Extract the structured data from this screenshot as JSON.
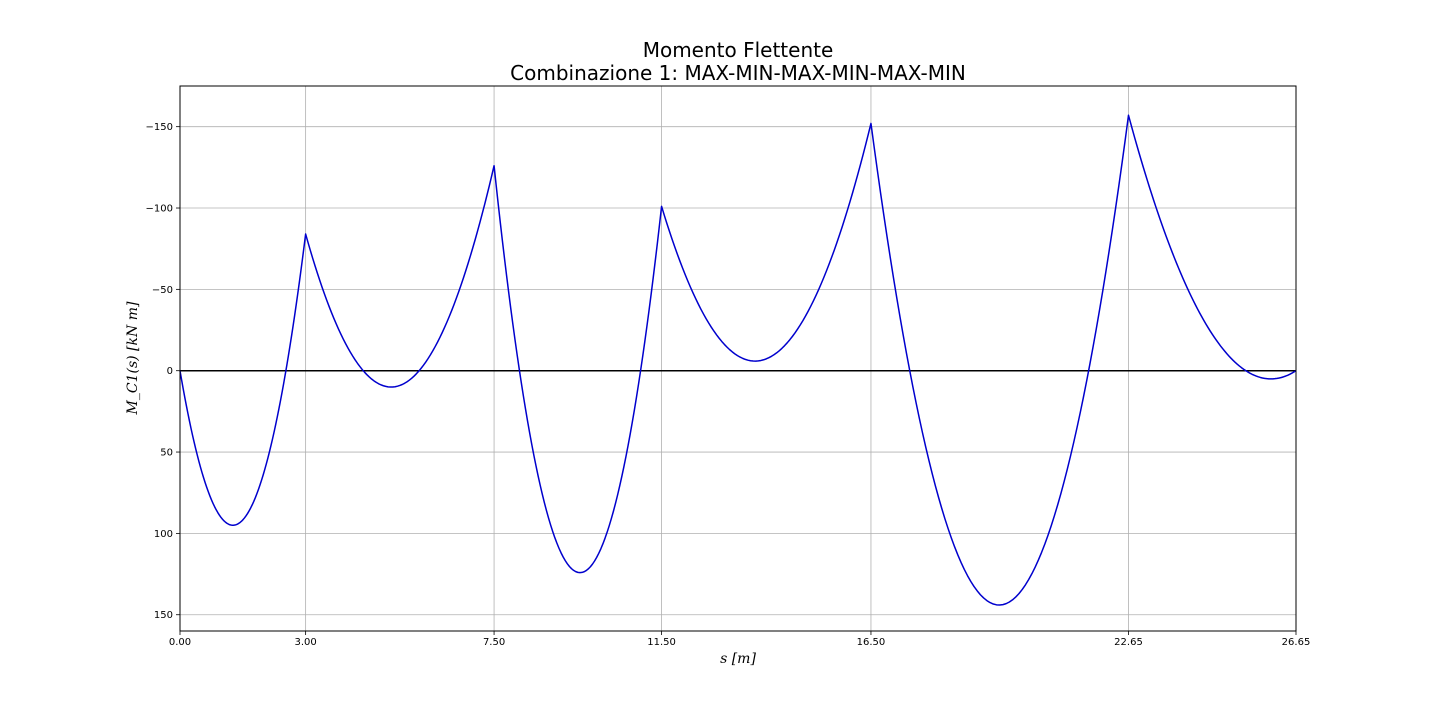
{
  "chart_data": {
    "type": "line",
    "title": "Momento Flettente",
    "subtitle": "Combinazione 1: MAX-MIN-MAX-MIN-MAX-MIN",
    "xlabel": "s [m]",
    "ylabel": "M_C1(s) [kN m]",
    "xlim": [
      0,
      26.65
    ],
    "ylim": [
      160,
      -175
    ],
    "y_inverted": true,
    "grid": true,
    "x_ticks": [
      0,
      3,
      7.5,
      11.5,
      16.5,
      22.65,
      26.65
    ],
    "x_tick_labels": [
      "0.00",
      "3.00",
      "7.50",
      "11.50",
      "16.50",
      "22.65",
      "26.65"
    ],
    "y_ticks": [
      -150,
      -100,
      -50,
      0,
      50,
      100,
      150
    ],
    "y_tick_labels": [
      "−150",
      "−100",
      "−50",
      "0",
      "50",
      "100",
      "150"
    ],
    "zero_line": true,
    "series": [
      {
        "color": "#0000cd",
        "spans": [
          {
            "x0": 0,
            "x1": 3,
            "m0": 0,
            "m1": -84,
            "extreme_x": 1.25,
            "extreme_m": 95
          },
          {
            "x0": 3,
            "x1": 7.5,
            "m0": -84,
            "m1": -126,
            "extreme_x": 5.0,
            "extreme_m": 10
          },
          {
            "x0": 7.5,
            "x1": 11.5,
            "m0": -126,
            "m1": -101,
            "extreme_x": 9.6,
            "extreme_m": 124
          },
          {
            "x0": 11.5,
            "x1": 16.5,
            "m0": -101,
            "m1": -152,
            "extreme_x": 13.8,
            "extreme_m": -6
          },
          {
            "x0": 16.5,
            "x1": 22.65,
            "m0": -152,
            "m1": -157,
            "extreme_x": 19.6,
            "extreme_m": 144
          },
          {
            "x0": 22.65,
            "x1": 26.65,
            "m0": -157,
            "m1": 0,
            "extreme_x": 26.0,
            "extreme_m": 5
          }
        ]
      }
    ]
  }
}
